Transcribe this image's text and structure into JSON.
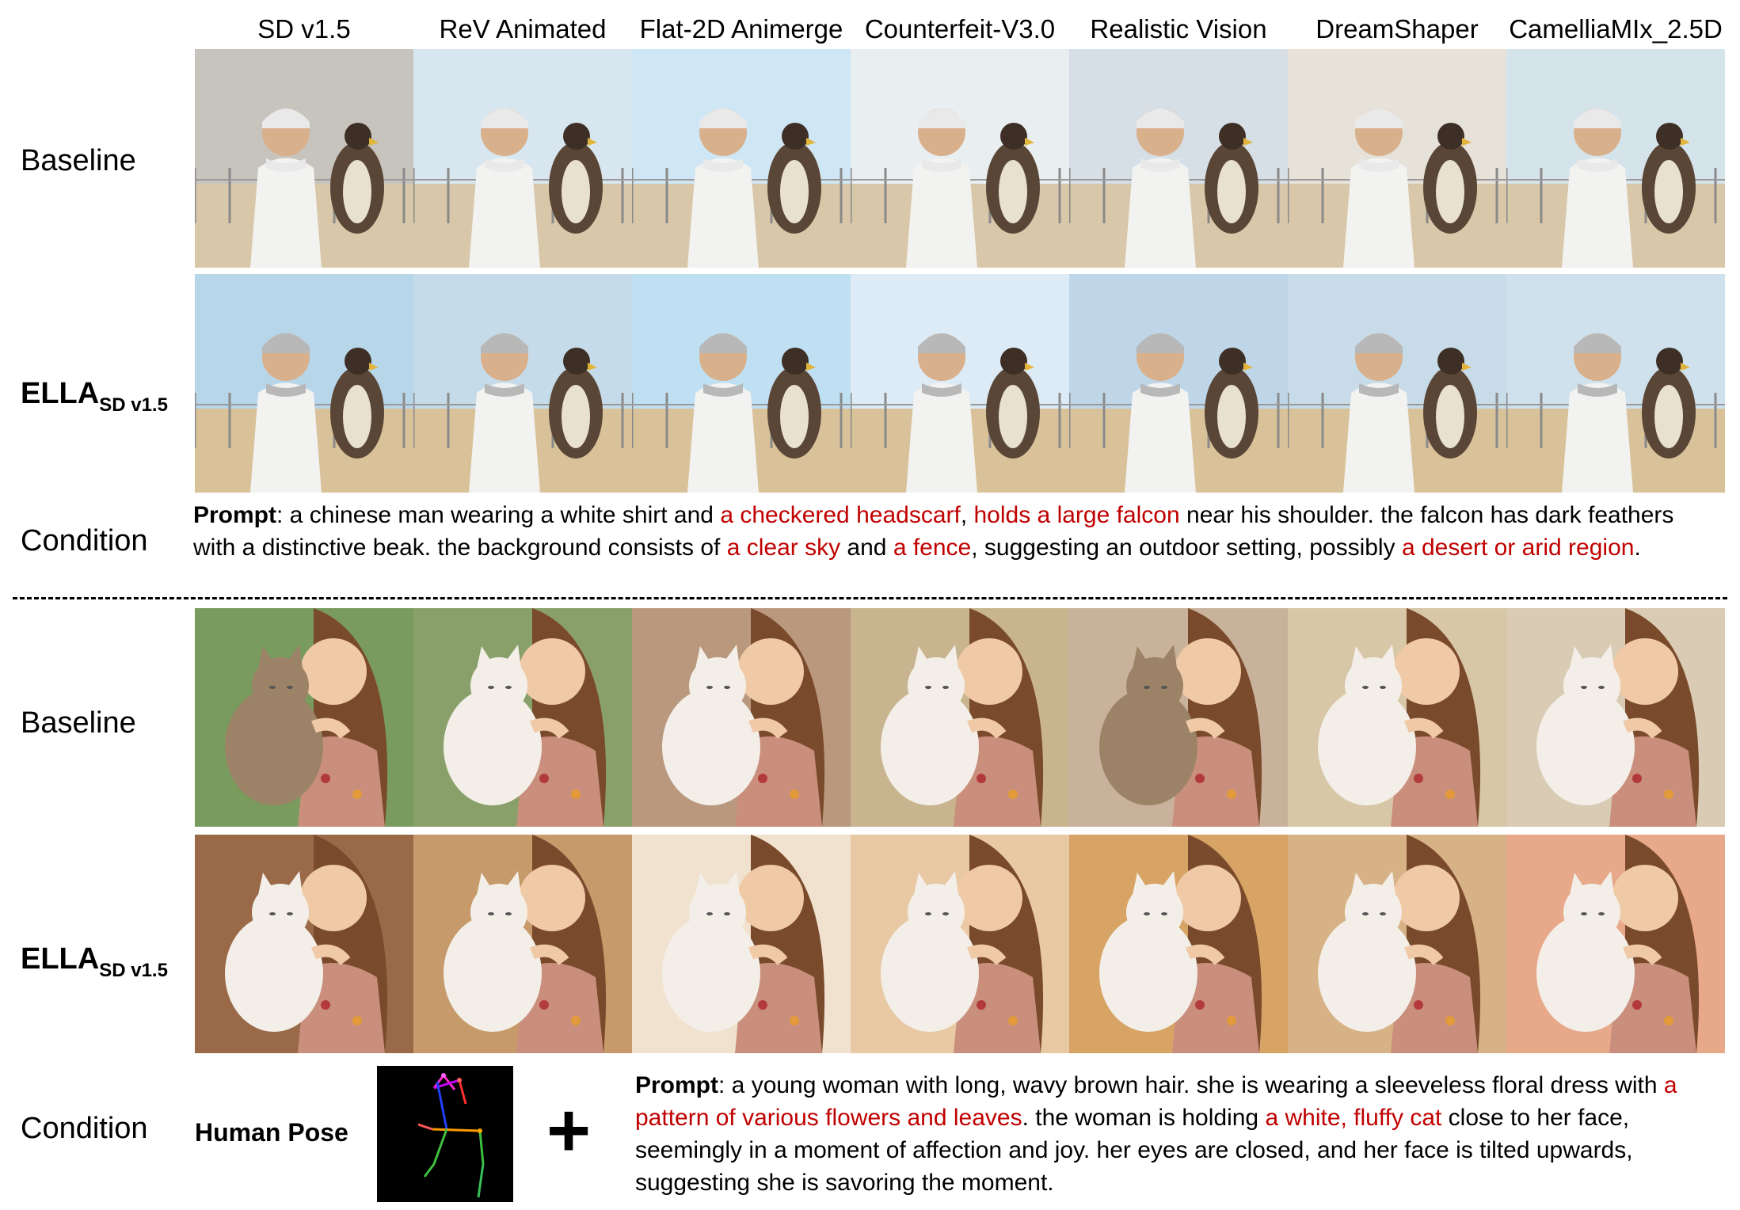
{
  "columns": [
    "SD v1.5",
    "ReV Animated",
    "Flat-2D Animerge",
    "Counterfeit-V3.0",
    "Realistic Vision",
    "DreamShaper",
    "CamelliaMIx_2.5D"
  ],
  "rows": {
    "baseline_label": "Baseline",
    "ella_label": "ELLA",
    "ella_sub": "SD v1.5",
    "condition_label": "Condition"
  },
  "section1": {
    "prompt_label": "Prompt",
    "prompt_parts": [
      {
        "t": ": a chinese man wearing a white shirt and ",
        "red": false
      },
      {
        "t": "a checkered headscarf",
        "red": true
      },
      {
        "t": ", ",
        "red": false
      },
      {
        "t": "holds a large falcon",
        "red": true
      },
      {
        "t": " near his shoulder. the falcon has dark feathers with a distinctive beak. the background consists of ",
        "red": false
      },
      {
        "t": "a clear sky",
        "red": true
      },
      {
        "t": " and ",
        "red": false
      },
      {
        "t": "a fence",
        "red": true
      },
      {
        "t": ", suggesting an outdoor setting, possibly ",
        "red": false
      },
      {
        "t": "a desert or arid region",
        "red": true
      },
      {
        "t": ".",
        "red": false
      }
    ]
  },
  "section2": {
    "human_pose_label": "Human Pose",
    "plus_sign": "+",
    "prompt_label": "Prompt",
    "prompt_parts": [
      {
        "t": ": a young woman with long, wavy brown hair. she is wearing a sleeveless floral dress with ",
        "red": false
      },
      {
        "t": "a pattern of various flowers and leaves",
        "red": true
      },
      {
        "t": ". the woman is holding ",
        "red": false
      },
      {
        "t": "a white, fluffy cat",
        "red": true
      },
      {
        "t": " close to her face, seemingly in a moment of affection and joy. her eyes are closed, and her face is tilted upwards, suggesting she is savoring the moment.",
        "red": false
      }
    ]
  },
  "colors": {
    "highlight": "#c00000",
    "text": "#000000"
  }
}
